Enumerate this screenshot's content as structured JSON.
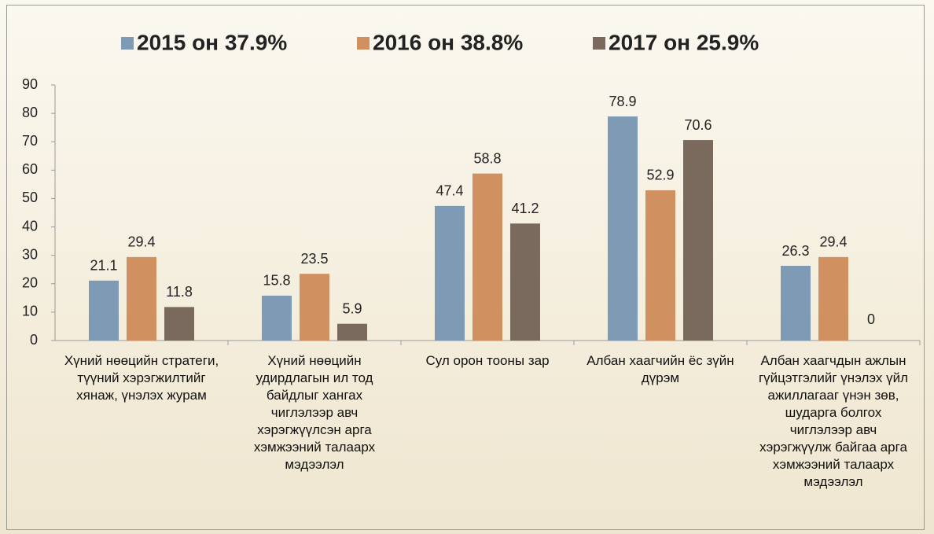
{
  "chart_data": {
    "type": "bar",
    "categories": [
      "Хүний нөөцийн стратеги, түүний хэрэгжилтийг хянаж, үнэлэх журам",
      "Хүний нөөцийн удирдлагын ил тод байдлыг хангах чиглэлээр авч хэрэгжүүлсэн арга хэмжээний талаарх мэдээлэл",
      "Сул орон тооны зар",
      "Албан хаагчийн ёс зүйн дүрэм",
      "Албан хаагчдын ажлын гүйцэтгэлийг үнэлэх үйл ажиллагааг үнэн зөв, шударга болгох чиглэлээр авч хэрэгжүүлж байгаа арга хэмжээний талаарх мэдээлэл"
    ],
    "series": [
      {
        "name": "2015 он 37.9%",
        "color": "#7f9ab5",
        "values": [
          21.1,
          15.8,
          47.4,
          78.9,
          26.3
        ]
      },
      {
        "name": "2016 он 38.8%",
        "color": "#d09060",
        "values": [
          29.4,
          23.5,
          58.8,
          52.9,
          29.4
        ]
      },
      {
        "name": "2017 он 25.9%",
        "color": "#7a6a5e",
        "values": [
          11.8,
          5.9,
          41.2,
          70.6,
          0
        ]
      }
    ],
    "ylim": [
      0,
      90
    ],
    "yticks": [
      0,
      10,
      20,
      30,
      40,
      50,
      60,
      70,
      80,
      90
    ],
    "legend": "top"
  }
}
